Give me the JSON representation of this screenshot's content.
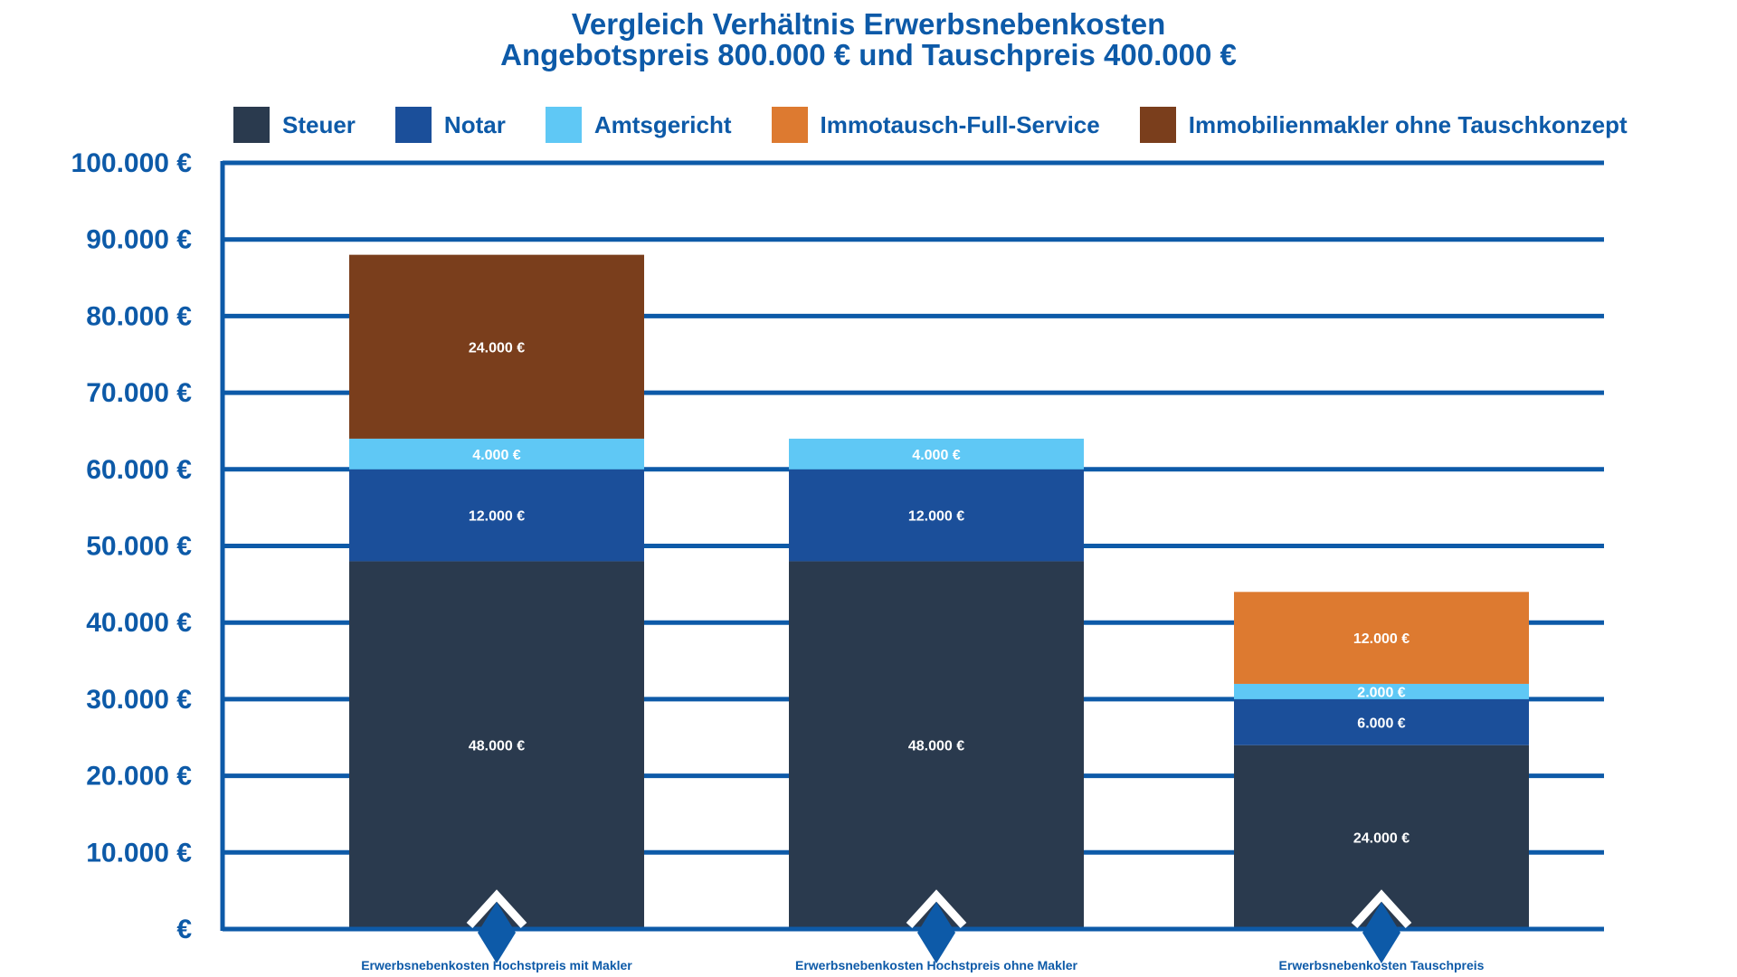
{
  "chart_data": {
    "type": "bar",
    "stacked": true,
    "title": "Vergleich Verhältnis Erwerbsnebenkosten",
    "subtitle": "Angebotspreis 800.000 € und Tauschpreis 400.000 €",
    "xlabel": "",
    "ylabel": "",
    "ylim": [
      0,
      100000
    ],
    "grid": true,
    "legend_position": "top",
    "y_ticks": [
      0,
      10000,
      20000,
      30000,
      40000,
      50000,
      60000,
      70000,
      80000,
      90000,
      100000
    ],
    "y_tick_labels": [
      "€",
      "10.000 €",
      "20.000 €",
      "30.000 €",
      "40.000 €",
      "50.000 €",
      "60.000 €",
      "70.000 €",
      "80.000 €",
      "90.000 €",
      "100.000 €"
    ],
    "categories": [
      "Erwerbsnebenkosten Hochstpreis mit Makler",
      "Erwerbsnebenkosten Hochstpreis ohne Makler",
      "Erwerbsnebenkosten Tauschpreis"
    ],
    "series": [
      {
        "name": "Steuer",
        "color": "#2a3a4e",
        "values": [
          48000,
          48000,
          24000
        ],
        "labels": [
          "48.000 €",
          "48.000 €",
          "24.000 €"
        ]
      },
      {
        "name": "Notar",
        "color": "#1b4f9a",
        "values": [
          12000,
          12000,
          6000
        ],
        "labels": [
          "12.000 €",
          "12.000 €",
          "6.000 €"
        ]
      },
      {
        "name": "Amtsgericht",
        "color": "#5fc8f5",
        "values": [
          4000,
          4000,
          2000
        ],
        "labels": [
          "4.000 €",
          "4.000 €",
          "2.000 €"
        ]
      },
      {
        "name": "Immotausch-Full-Service",
        "color": "#dd7a30",
        "values": [
          0,
          0,
          12000
        ],
        "labels": [
          "",
          "",
          "12.000 €"
        ]
      },
      {
        "name": "Immobilienmakler ohne Tauschkonzept",
        "color": "#7a3e1c",
        "values": [
          24000,
          0,
          0
        ],
        "labels": [
          "24.000 €",
          "",
          ""
        ]
      }
    ],
    "axis_color": "#0d5aa8",
    "marker_color": "#0d5aa8"
  }
}
